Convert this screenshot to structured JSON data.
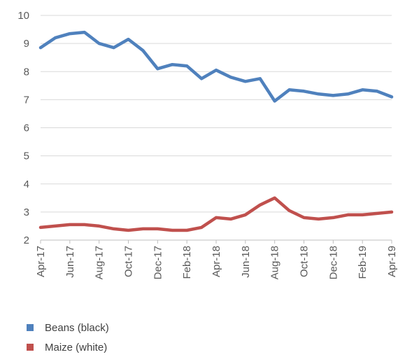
{
  "chart_data": {
    "type": "line",
    "title": "",
    "xlabel": "",
    "ylabel": "",
    "ylim": [
      2,
      10
    ],
    "y_ticks": [
      2,
      3,
      4,
      5,
      6,
      7,
      8,
      9,
      10
    ],
    "grid": true,
    "legend_position": "bottom-left",
    "x": [
      "Apr-17",
      "May-17",
      "Jun-17",
      "Jul-17",
      "Aug-17",
      "Sep-17",
      "Oct-17",
      "Nov-17",
      "Dec-17",
      "Jan-18",
      "Feb-18",
      "Mar-18",
      "Apr-18",
      "May-18",
      "Jun-18",
      "Jul-18",
      "Aug-18",
      "Sep-18",
      "Oct-18",
      "Nov-18",
      "Dec-18",
      "Jan-19",
      "Feb-19",
      "Mar-19",
      "Apr-19"
    ],
    "x_tick_labels": [
      "Apr-17",
      "Jun-17",
      "Aug-17",
      "Oct-17",
      "Dec-17",
      "Feb-18",
      "Apr-18",
      "Jun-18",
      "Aug-18",
      "Oct-18",
      "Dec-18",
      "Feb-19",
      "Apr-19"
    ],
    "series": [
      {
        "name": "Beans (black)",
        "color": "#4f81bd",
        "values": [
          8.85,
          9.2,
          9.35,
          9.4,
          9.0,
          8.85,
          9.15,
          8.75,
          8.1,
          8.25,
          8.2,
          7.75,
          8.05,
          7.8,
          7.65,
          7.75,
          6.95,
          7.35,
          7.3,
          7.2,
          7.15,
          7.2,
          7.35,
          7.3,
          7.1
        ]
      },
      {
        "name": "Maize (white)",
        "color": "#c0504d",
        "values": [
          2.45,
          2.5,
          2.55,
          2.55,
          2.5,
          2.4,
          2.35,
          2.4,
          2.4,
          2.35,
          2.35,
          2.45,
          2.8,
          2.75,
          2.9,
          3.25,
          3.5,
          3.05,
          2.8,
          2.75,
          2.8,
          2.9,
          2.9,
          2.95,
          3.0
        ]
      }
    ]
  }
}
